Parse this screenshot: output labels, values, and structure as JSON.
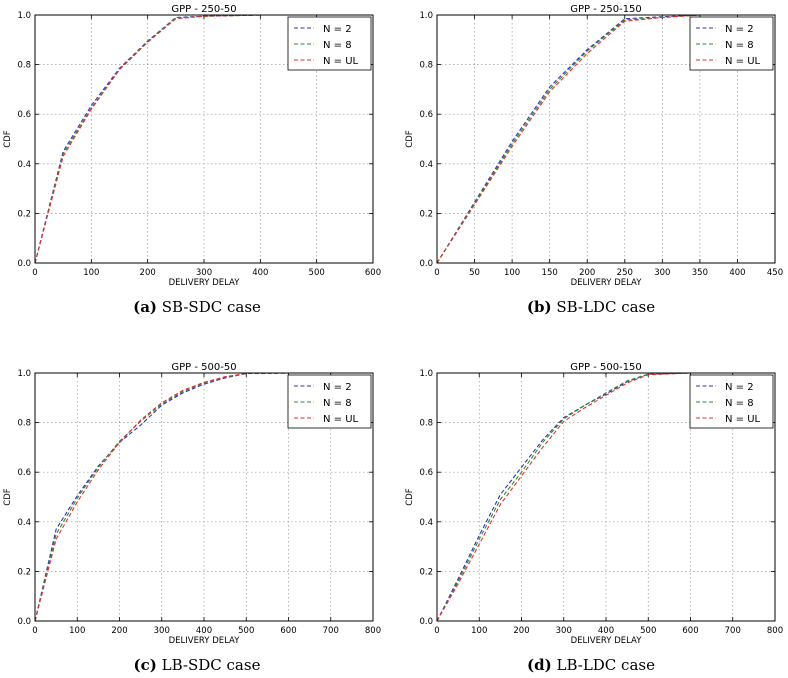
{
  "chart_data": [
    {
      "type": "line",
      "title": "GPP - 250-50",
      "xlabel": "DELIVERY DELAY",
      "ylabel": "CDF",
      "xlim": [
        0,
        600
      ],
      "ylim": [
        0,
        1.0
      ],
      "xticks": [
        "0",
        "100",
        "200",
        "300",
        "400",
        "500",
        "600"
      ],
      "yticks": [
        "0.0",
        "0.2",
        "0.4",
        "0.6",
        "0.8",
        "1.0"
      ],
      "grid": true,
      "legend_position": "top-right",
      "caption_letter": "(a)",
      "caption_text": " SB-SDC case",
      "series": [
        {
          "name": "N = 2",
          "color": "#3030c0",
          "points": [
            [
              0,
              0
            ],
            [
              50,
              0.45
            ],
            [
              100,
              0.635
            ],
            [
              150,
              0.785
            ],
            [
              200,
              0.895
            ],
            [
              250,
              0.99
            ],
            [
              300,
              0.995
            ],
            [
              400,
              1.0
            ]
          ]
        },
        {
          "name": "N = 8",
          "color": "#2e8b2e",
          "points": [
            [
              0,
              0
            ],
            [
              50,
              0.44
            ],
            [
              100,
              0.625
            ],
            [
              150,
              0.78
            ],
            [
              200,
              0.892
            ],
            [
              250,
              0.988
            ],
            [
              300,
              0.995
            ],
            [
              400,
              1.0
            ]
          ]
        },
        {
          "name": "N = UL",
          "color": "#e03030",
          "points": [
            [
              0,
              0
            ],
            [
              50,
              0.43
            ],
            [
              100,
              0.62
            ],
            [
              150,
              0.78
            ],
            [
              200,
              0.89
            ],
            [
              250,
              0.985
            ],
            [
              300,
              0.995
            ],
            [
              400,
              1.0
            ]
          ]
        }
      ]
    },
    {
      "type": "line",
      "title": "GPP - 250-150",
      "xlabel": "DELIVERY DELAY",
      "ylabel": "CDF",
      "xlim": [
        0,
        450
      ],
      "ylim": [
        0,
        1.0
      ],
      "xticks": [
        "0",
        "50",
        "100",
        "150",
        "200",
        "250",
        "300",
        "350",
        "400",
        "450"
      ],
      "yticks": [
        "0.0",
        "0.2",
        "0.4",
        "0.6",
        "0.8",
        "1.0"
      ],
      "grid": true,
      "legend_position": "top-right",
      "caption_letter": "(b)",
      "caption_text": " SB-LDC case",
      "series": [
        {
          "name": "N = 2",
          "color": "#3030c0",
          "points": [
            [
              0,
              0
            ],
            [
              50,
              0.245
            ],
            [
              100,
              0.49
            ],
            [
              150,
              0.71
            ],
            [
              200,
              0.86
            ],
            [
              250,
              0.985
            ],
            [
              300,
              0.993
            ],
            [
              350,
              1.0
            ]
          ]
        },
        {
          "name": "N = 8",
          "color": "#2e8b2e",
          "points": [
            [
              0,
              0
            ],
            [
              50,
              0.24
            ],
            [
              100,
              0.48
            ],
            [
              150,
              0.7
            ],
            [
              200,
              0.855
            ],
            [
              250,
              0.98
            ],
            [
              300,
              0.99
            ],
            [
              350,
              1.0
            ]
          ]
        },
        {
          "name": "N = UL",
          "color": "#e03030",
          "points": [
            [
              0,
              0
            ],
            [
              50,
              0.235
            ],
            [
              100,
              0.47
            ],
            [
              150,
              0.69
            ],
            [
              200,
              0.845
            ],
            [
              250,
              0.975
            ],
            [
              300,
              0.99
            ],
            [
              350,
              1.0
            ]
          ]
        }
      ]
    },
    {
      "type": "line",
      "title": "GPP - 500-50",
      "xlabel": "DELIVERY DELAY",
      "ylabel": "CDF",
      "xlim": [
        0,
        800
      ],
      "ylim": [
        0,
        1.0
      ],
      "xticks": [
        "0",
        "100",
        "200",
        "300",
        "400",
        "500",
        "600",
        "700",
        "800"
      ],
      "yticks": [
        "0.0",
        "0.2",
        "0.4",
        "0.6",
        "0.8",
        "1.0"
      ],
      "grid": true,
      "legend_position": "top-right",
      "caption_letter": "(c)",
      "caption_text": " LB-SDC case",
      "series": [
        {
          "name": "N = 2",
          "color": "#3030c0",
          "points": [
            [
              0,
              0
            ],
            [
              50,
              0.37
            ],
            [
              100,
              0.505
            ],
            [
              150,
              0.625
            ],
            [
              200,
              0.72
            ],
            [
              250,
              0.79
            ],
            [
              300,
              0.87
            ],
            [
              350,
              0.92
            ],
            [
              400,
              0.955
            ],
            [
              450,
              0.98
            ],
            [
              500,
              0.998
            ],
            [
              600,
              1.0
            ]
          ]
        },
        {
          "name": "N = 8",
          "color": "#2e8b2e",
          "points": [
            [
              0,
              0
            ],
            [
              50,
              0.35
            ],
            [
              100,
              0.495
            ],
            [
              150,
              0.62
            ],
            [
              200,
              0.725
            ],
            [
              250,
              0.805
            ],
            [
              300,
              0.875
            ],
            [
              350,
              0.925
            ],
            [
              400,
              0.96
            ],
            [
              450,
              0.983
            ],
            [
              500,
              0.998
            ],
            [
              600,
              1.0
            ]
          ]
        },
        {
          "name": "N = UL",
          "color": "#e03030",
          "points": [
            [
              0,
              0
            ],
            [
              50,
              0.33
            ],
            [
              100,
              0.48
            ],
            [
              150,
              0.61
            ],
            [
              200,
              0.72
            ],
            [
              250,
              0.81
            ],
            [
              300,
              0.88
            ],
            [
              350,
              0.93
            ],
            [
              400,
              0.962
            ],
            [
              450,
              0.985
            ],
            [
              500,
              0.998
            ],
            [
              600,
              1.0
            ]
          ]
        }
      ]
    },
    {
      "type": "line",
      "title": "GPP - 500-150",
      "xlabel": "DELIVERY DELAY",
      "ylabel": "CDF",
      "xlim": [
        0,
        800
      ],
      "ylim": [
        0,
        1.0
      ],
      "xticks": [
        "0",
        "100",
        "200",
        "300",
        "400",
        "500",
        "600",
        "700",
        "800"
      ],
      "yticks": [
        "0.0",
        "0.2",
        "0.4",
        "0.6",
        "0.8",
        "1.0"
      ],
      "grid": true,
      "legend_position": "top-right",
      "caption_letter": "(d)",
      "caption_text": " LB-LDC case",
      "series": [
        {
          "name": "N = 2",
          "color": "#3030c0",
          "points": [
            [
              0,
              0
            ],
            [
              50,
              0.17
            ],
            [
              100,
              0.345
            ],
            [
              150,
              0.51
            ],
            [
              200,
              0.62
            ],
            [
              250,
              0.73
            ],
            [
              300,
              0.82
            ],
            [
              350,
              0.87
            ],
            [
              400,
              0.915
            ],
            [
              450,
              0.965
            ],
            [
              500,
              0.995
            ],
            [
              600,
              1.0
            ]
          ]
        },
        {
          "name": "N = 8",
          "color": "#2e8b2e",
          "points": [
            [
              0,
              0
            ],
            [
              50,
              0.16
            ],
            [
              100,
              0.33
            ],
            [
              150,
              0.49
            ],
            [
              200,
              0.6
            ],
            [
              250,
              0.72
            ],
            [
              300,
              0.815
            ],
            [
              350,
              0.87
            ],
            [
              400,
              0.92
            ],
            [
              450,
              0.968
            ],
            [
              500,
              0.996
            ],
            [
              600,
              1.0
            ]
          ]
        },
        {
          "name": "N = UL",
          "color": "#e03030",
          "points": [
            [
              0,
              0
            ],
            [
              50,
              0.15
            ],
            [
              100,
              0.31
            ],
            [
              150,
              0.47
            ],
            [
              200,
              0.585
            ],
            [
              250,
              0.7
            ],
            [
              300,
              0.805
            ],
            [
              350,
              0.86
            ],
            [
              400,
              0.91
            ],
            [
              450,
              0.96
            ],
            [
              500,
              0.993
            ],
            [
              600,
              1.0
            ]
          ]
        }
      ]
    }
  ]
}
